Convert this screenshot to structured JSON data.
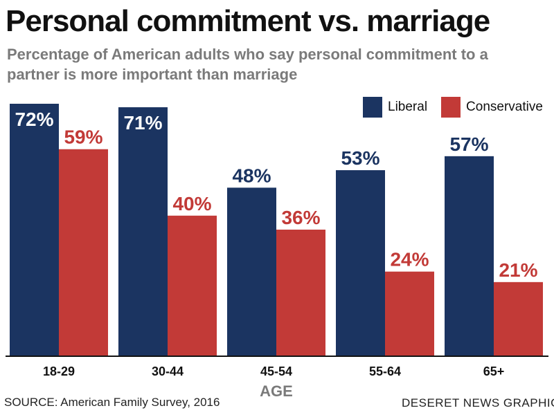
{
  "chart_data": {
    "type": "bar",
    "title": "Personal commitment vs. marriage",
    "subtitle": "Percentage of American adults who say personal commitment to a partner is more important than marriage",
    "xlabel": "AGE",
    "ylabel": "",
    "categories": [
      "18-29",
      "30-44",
      "45-54",
      "55-64",
      "65+"
    ],
    "series": [
      {
        "name": "Liberal",
        "values": [
          72,
          71,
          48,
          53,
          57
        ],
        "labels": [
          "72%",
          "71%",
          "48%",
          "53%",
          "57%"
        ],
        "color": "#1b3461"
      },
      {
        "name": "Conservative",
        "values": [
          59,
          40,
          36,
          24,
          21
        ],
        "labels": [
          "59%",
          "40%",
          "36%",
          "24%",
          "21%"
        ],
        "color": "#c23a37"
      }
    ],
    "ylim": [
      0,
      72
    ],
    "grid": false,
    "legend_position": "top-right",
    "source": "SOURCE: American Family Survey, 2016",
    "credit": "DESERET NEWS GRAPHIC"
  }
}
